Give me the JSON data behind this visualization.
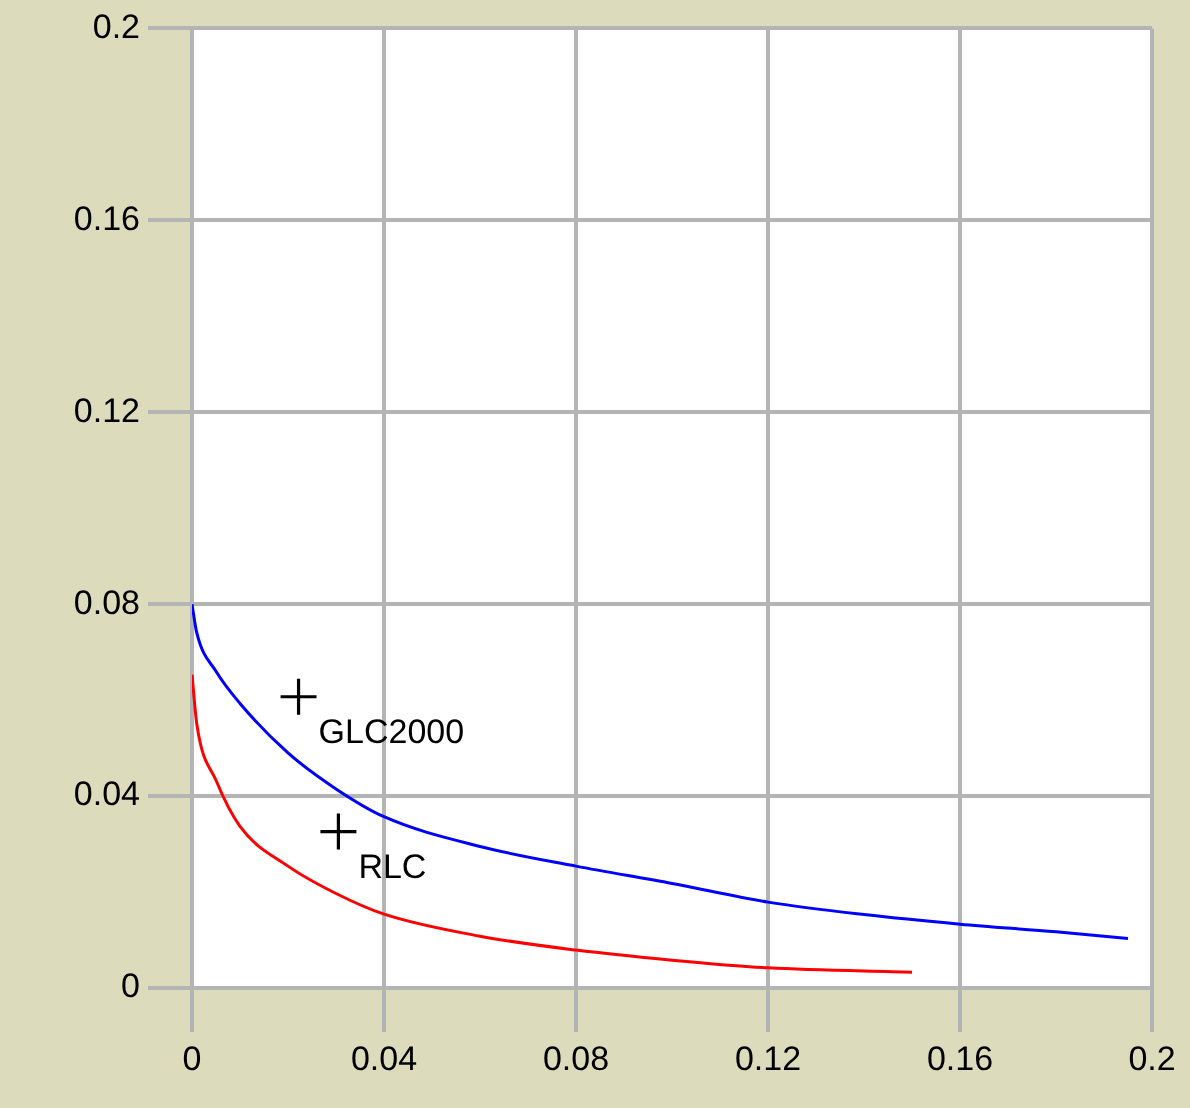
{
  "chart_data": {
    "type": "line",
    "xlim": [
      0,
      0.2
    ],
    "ylim": [
      0,
      0.2
    ],
    "xticks": [
      0,
      0.04,
      0.08,
      0.12,
      0.16,
      0.2
    ],
    "yticks": [
      0,
      0.04,
      0.08,
      0.12,
      0.16,
      0.2
    ],
    "grid": true,
    "legend": false,
    "series": [
      {
        "color": "#0000ff",
        "marker": "none",
        "x": [
          0,
          0.001,
          0.005,
          0.01,
          0.02,
          0.03,
          0.04,
          0.06,
          0.08,
          0.1,
          0.12,
          0.14,
          0.16,
          0.18,
          0.195
        ],
        "values": [
          0.08,
          0.074,
          0.066,
          0.0593,
          0.049,
          0.0415,
          0.0357,
          0.0295,
          0.0254,
          0.0218,
          0.0179,
          0.0153,
          0.0133,
          0.0117,
          0.0103
        ]
      },
      {
        "color": "#ff0000",
        "marker": "none",
        "x": [
          0,
          0.001,
          0.005,
          0.01,
          0.02,
          0.03,
          0.04,
          0.06,
          0.08,
          0.1,
          0.12,
          0.15
        ],
        "values": [
          0.0653,
          0.055,
          0.0433,
          0.0337,
          0.0254,
          0.0197,
          0.0154,
          0.0108,
          0.0079,
          0.0058,
          0.0042,
          0.0033
        ]
      },
      {
        "type": "scatter",
        "name": "GLC2000",
        "color": "#000000",
        "marker": "cross",
        "x": [
          0.0222
        ],
        "values": [
          0.0607
        ]
      },
      {
        "type": "scatter",
        "name": "RLC",
        "color": "#000000",
        "marker": "cross",
        "x": [
          0.0305
        ],
        "values": [
          0.0326
        ]
      }
    ]
  }
}
